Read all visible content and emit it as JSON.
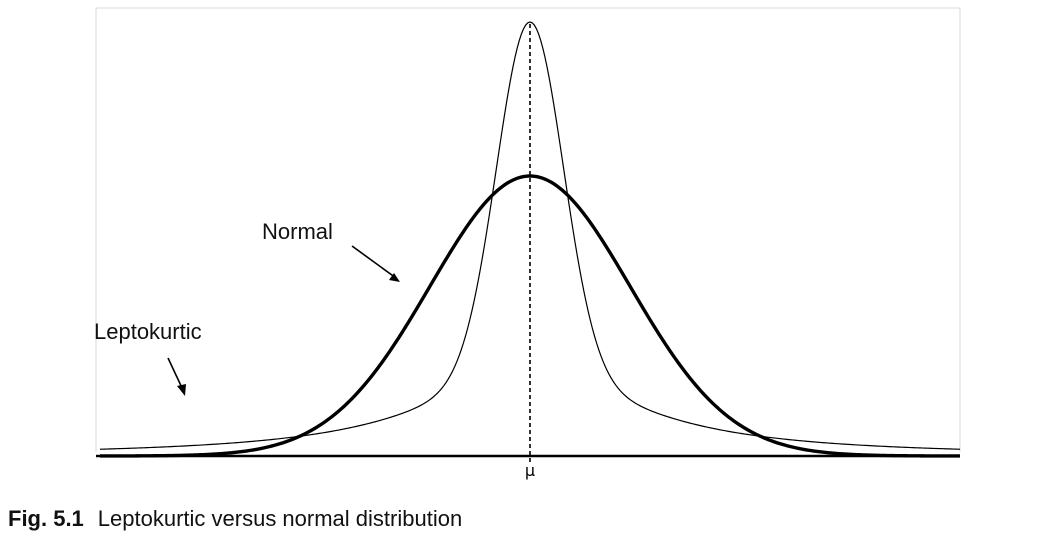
{
  "chart_data": {
    "type": "line",
    "title": "",
    "xlabel": "",
    "ylabel": "",
    "x_tick_labels": [
      "μ"
    ],
    "series": [
      {
        "name": "Normal",
        "distribution": "normal",
        "mean": 0,
        "std": 1.0,
        "peak": 0.4,
        "line": "thick"
      },
      {
        "name": "Leptokurtic",
        "distribution": "leptokurtic (heavy-tailed)",
        "mean": 0,
        "peak": 0.62,
        "line": "thin"
      }
    ],
    "xlim": [
      -4.3,
      4.3
    ],
    "ylim": [
      0,
      0.64
    ],
    "grid": false,
    "mean_line": "dashed",
    "colors": {
      "curve": "#000000",
      "axis": "#000000",
      "border": "#d9d9d9",
      "background": "#ffffff"
    }
  },
  "caption": {
    "label": "Fig. 5.1",
    "text": "Leptokurtic versus normal distribution"
  }
}
